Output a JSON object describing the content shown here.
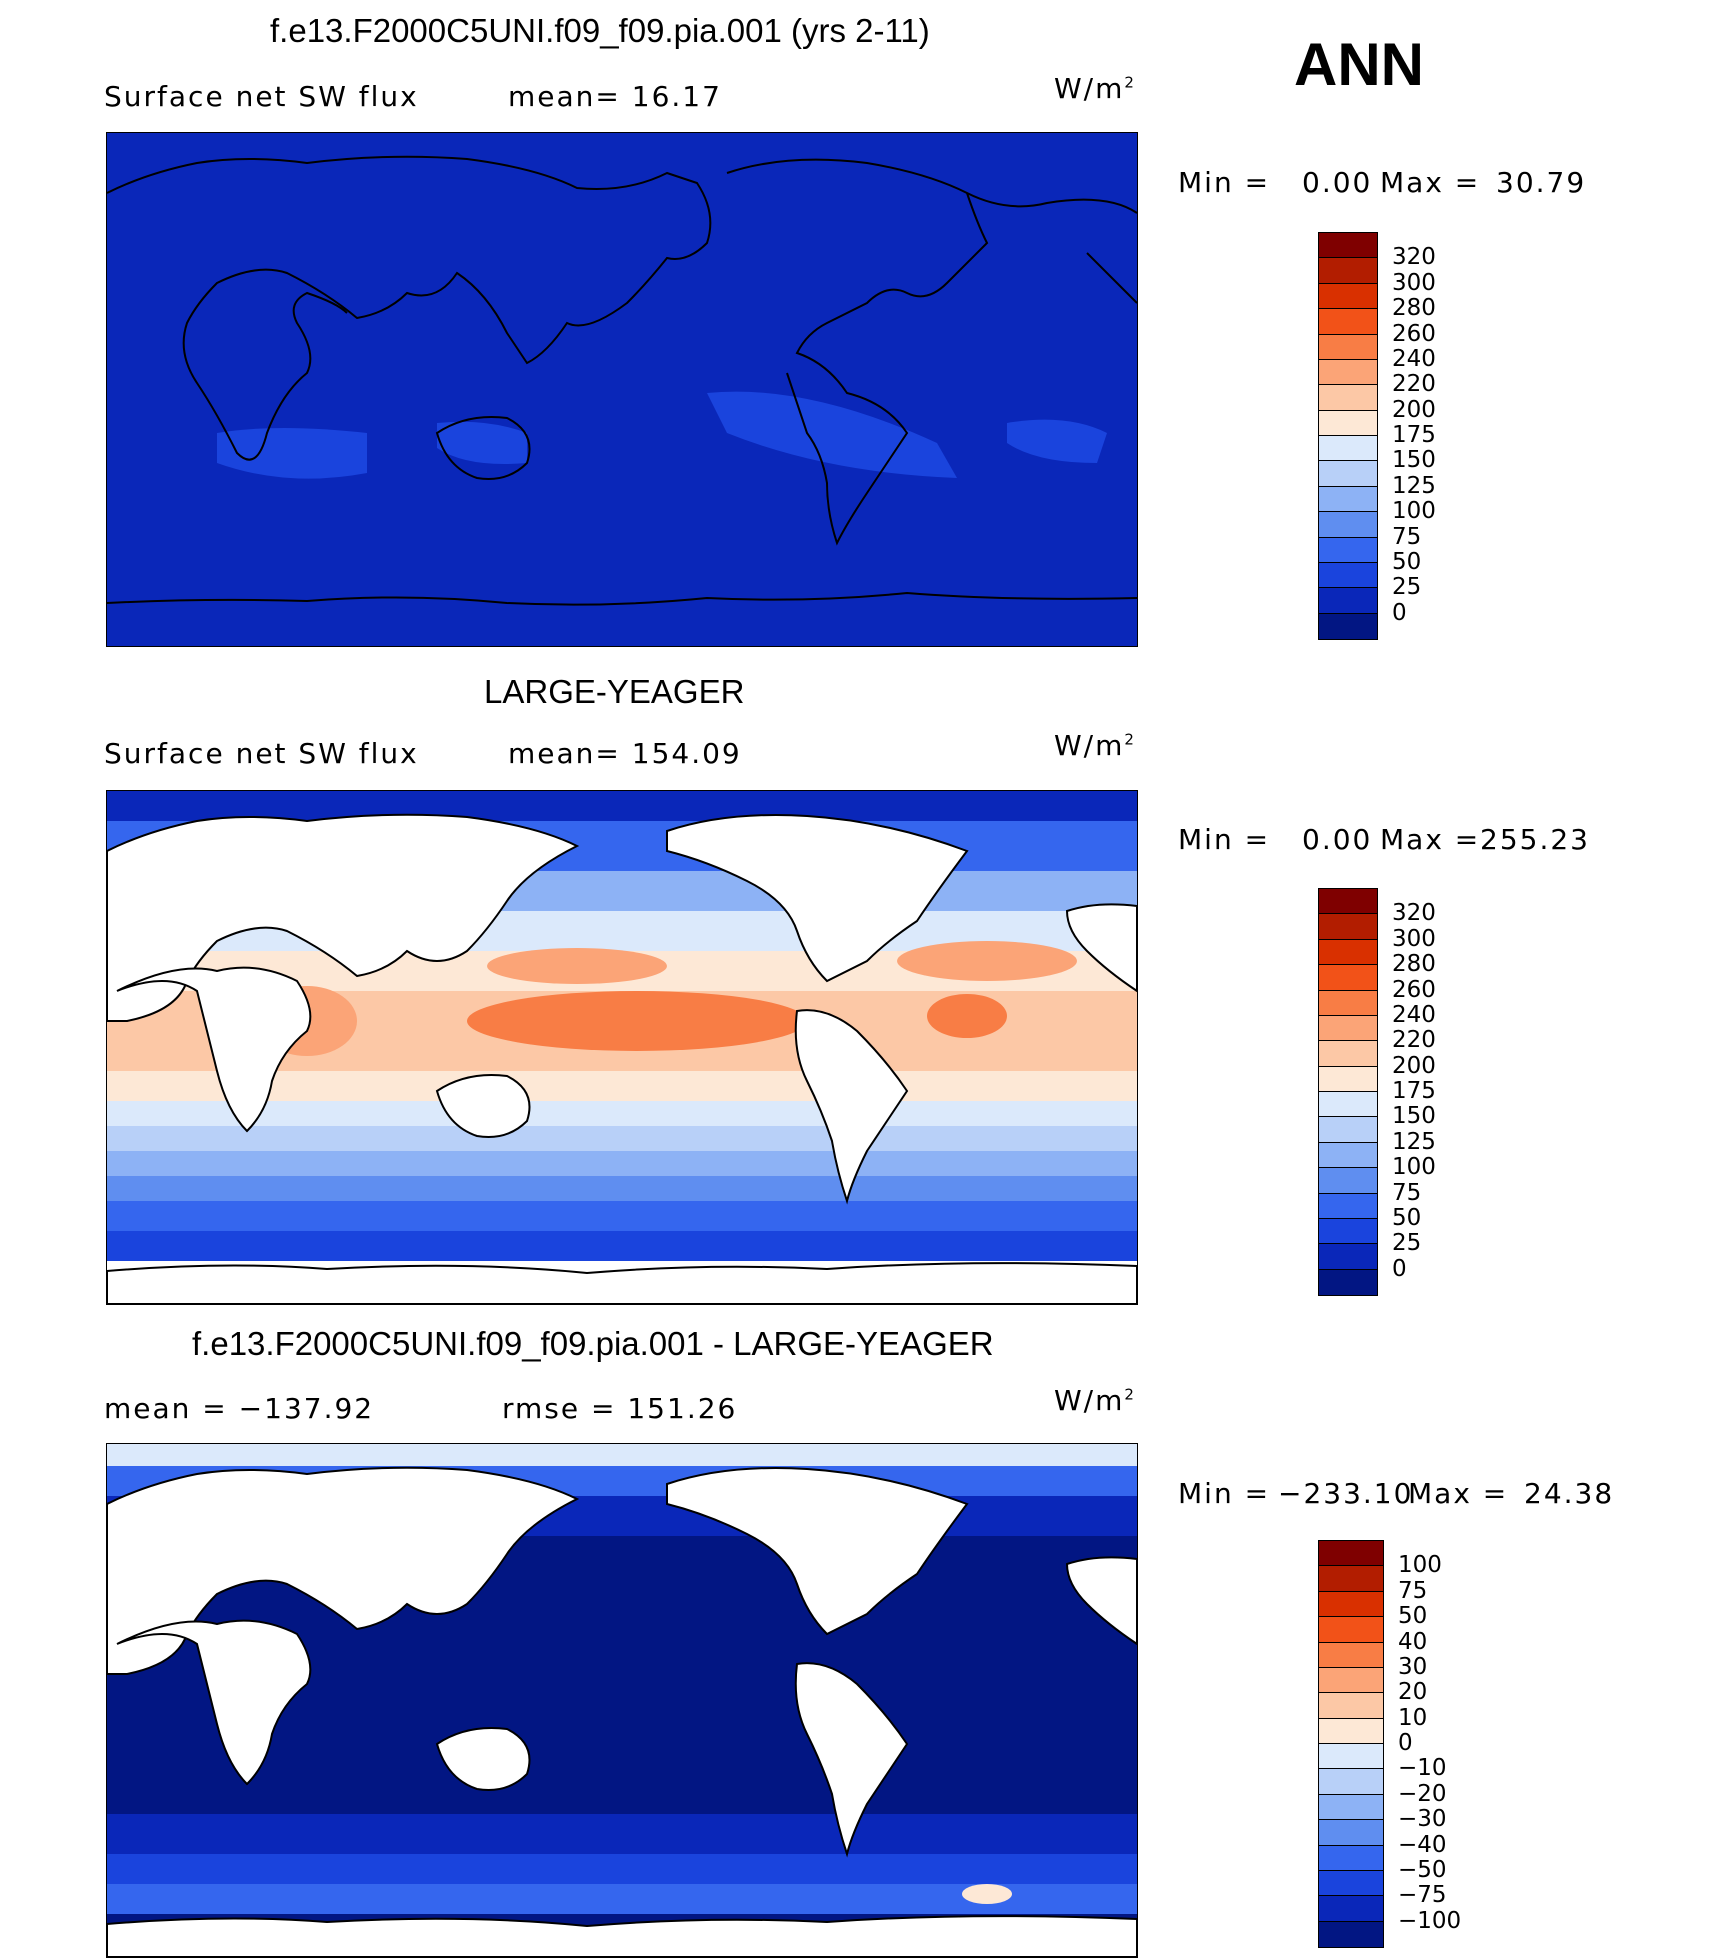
{
  "season": "ANN",
  "units_base": "W/m",
  "units_exp": "2",
  "panels": [
    {
      "title": "f.e13.F2000C5UNI.f09_f09.pia.001 (yrs 2-11)",
      "left_label": "Surface net SW flux",
      "stat1": "mean=  16.17",
      "stat2": "",
      "min_label": "Min =",
      "min_value": "0.00",
      "max_label": "Max =",
      "max_value": "30.79",
      "colorbar": {
        "labels": [
          "320",
          "300",
          "280",
          "260",
          "240",
          "220",
          "200",
          "175",
          "150",
          "125",
          "100",
          "75",
          "50",
          "25",
          "0"
        ],
        "colors": [
          "#7f0000",
          "#b21d00",
          "#d93000",
          "#f25218",
          "#f87d45",
          "#fba477",
          "#fcc8a6",
          "#fde8d6",
          "#dbe9fb",
          "#b8d0f8",
          "#8db2f5",
          "#5f8ef0",
          "#3566ee",
          "#1a44dd",
          "#0a27b9",
          "#021683"
        ]
      },
      "field": "uniform low flux (~0-30 W/m2) over ocean and land"
    },
    {
      "title": "LARGE-YEAGER",
      "left_label": "Surface net SW flux",
      "stat1": "mean= 154.09",
      "stat2": "",
      "min_label": "Min =",
      "min_value": "0.00",
      "max_label": "Max =",
      "max_value": "255.23",
      "colorbar": {
        "labels": [
          "320",
          "300",
          "280",
          "260",
          "240",
          "220",
          "200",
          "175",
          "150",
          "125",
          "100",
          "75",
          "50",
          "25",
          "0"
        ],
        "colors": [
          "#7f0000",
          "#b21d00",
          "#d93000",
          "#f25218",
          "#f87d45",
          "#fba477",
          "#fcc8a6",
          "#fde8d6",
          "#dbe9fb",
          "#b8d0f8",
          "#8db2f5",
          "#5f8ef0",
          "#3566ee",
          "#1a44dd",
          "#0a27b9",
          "#021683"
        ]
      },
      "field": "ocean-only flux: high in tropics, decreasing poleward; land masked white"
    },
    {
      "title": "f.e13.F2000C5UNI.f09_f09.pia.001 - LARGE-YEAGER",
      "left_label": "mean = −137.92",
      "stat1": "rmse = 151.26",
      "stat2": "",
      "min_label": "Min =",
      "min_value": "−233.10",
      "max_label": "Max =",
      "max_value": "24.38",
      "colorbar": {
        "labels": [
          "100",
          "75",
          "50",
          "40",
          "30",
          "20",
          "10",
          "0",
          "−10",
          "−20",
          "−30",
          "−40",
          "−50",
          "−75",
          "−100"
        ],
        "colors": [
          "#7f0000",
          "#b21d00",
          "#d93000",
          "#f25218",
          "#f87d45",
          "#fba477",
          "#fcc8a6",
          "#fde8d6",
          "#dbe9fb",
          "#b8d0f8",
          "#8db2f5",
          "#5f8ef0",
          "#3566ee",
          "#1a44dd",
          "#0a27b9",
          "#021683"
        ]
      },
      "field": "strongly negative difference over ocean; near zero at high latitudes"
    }
  ]
}
